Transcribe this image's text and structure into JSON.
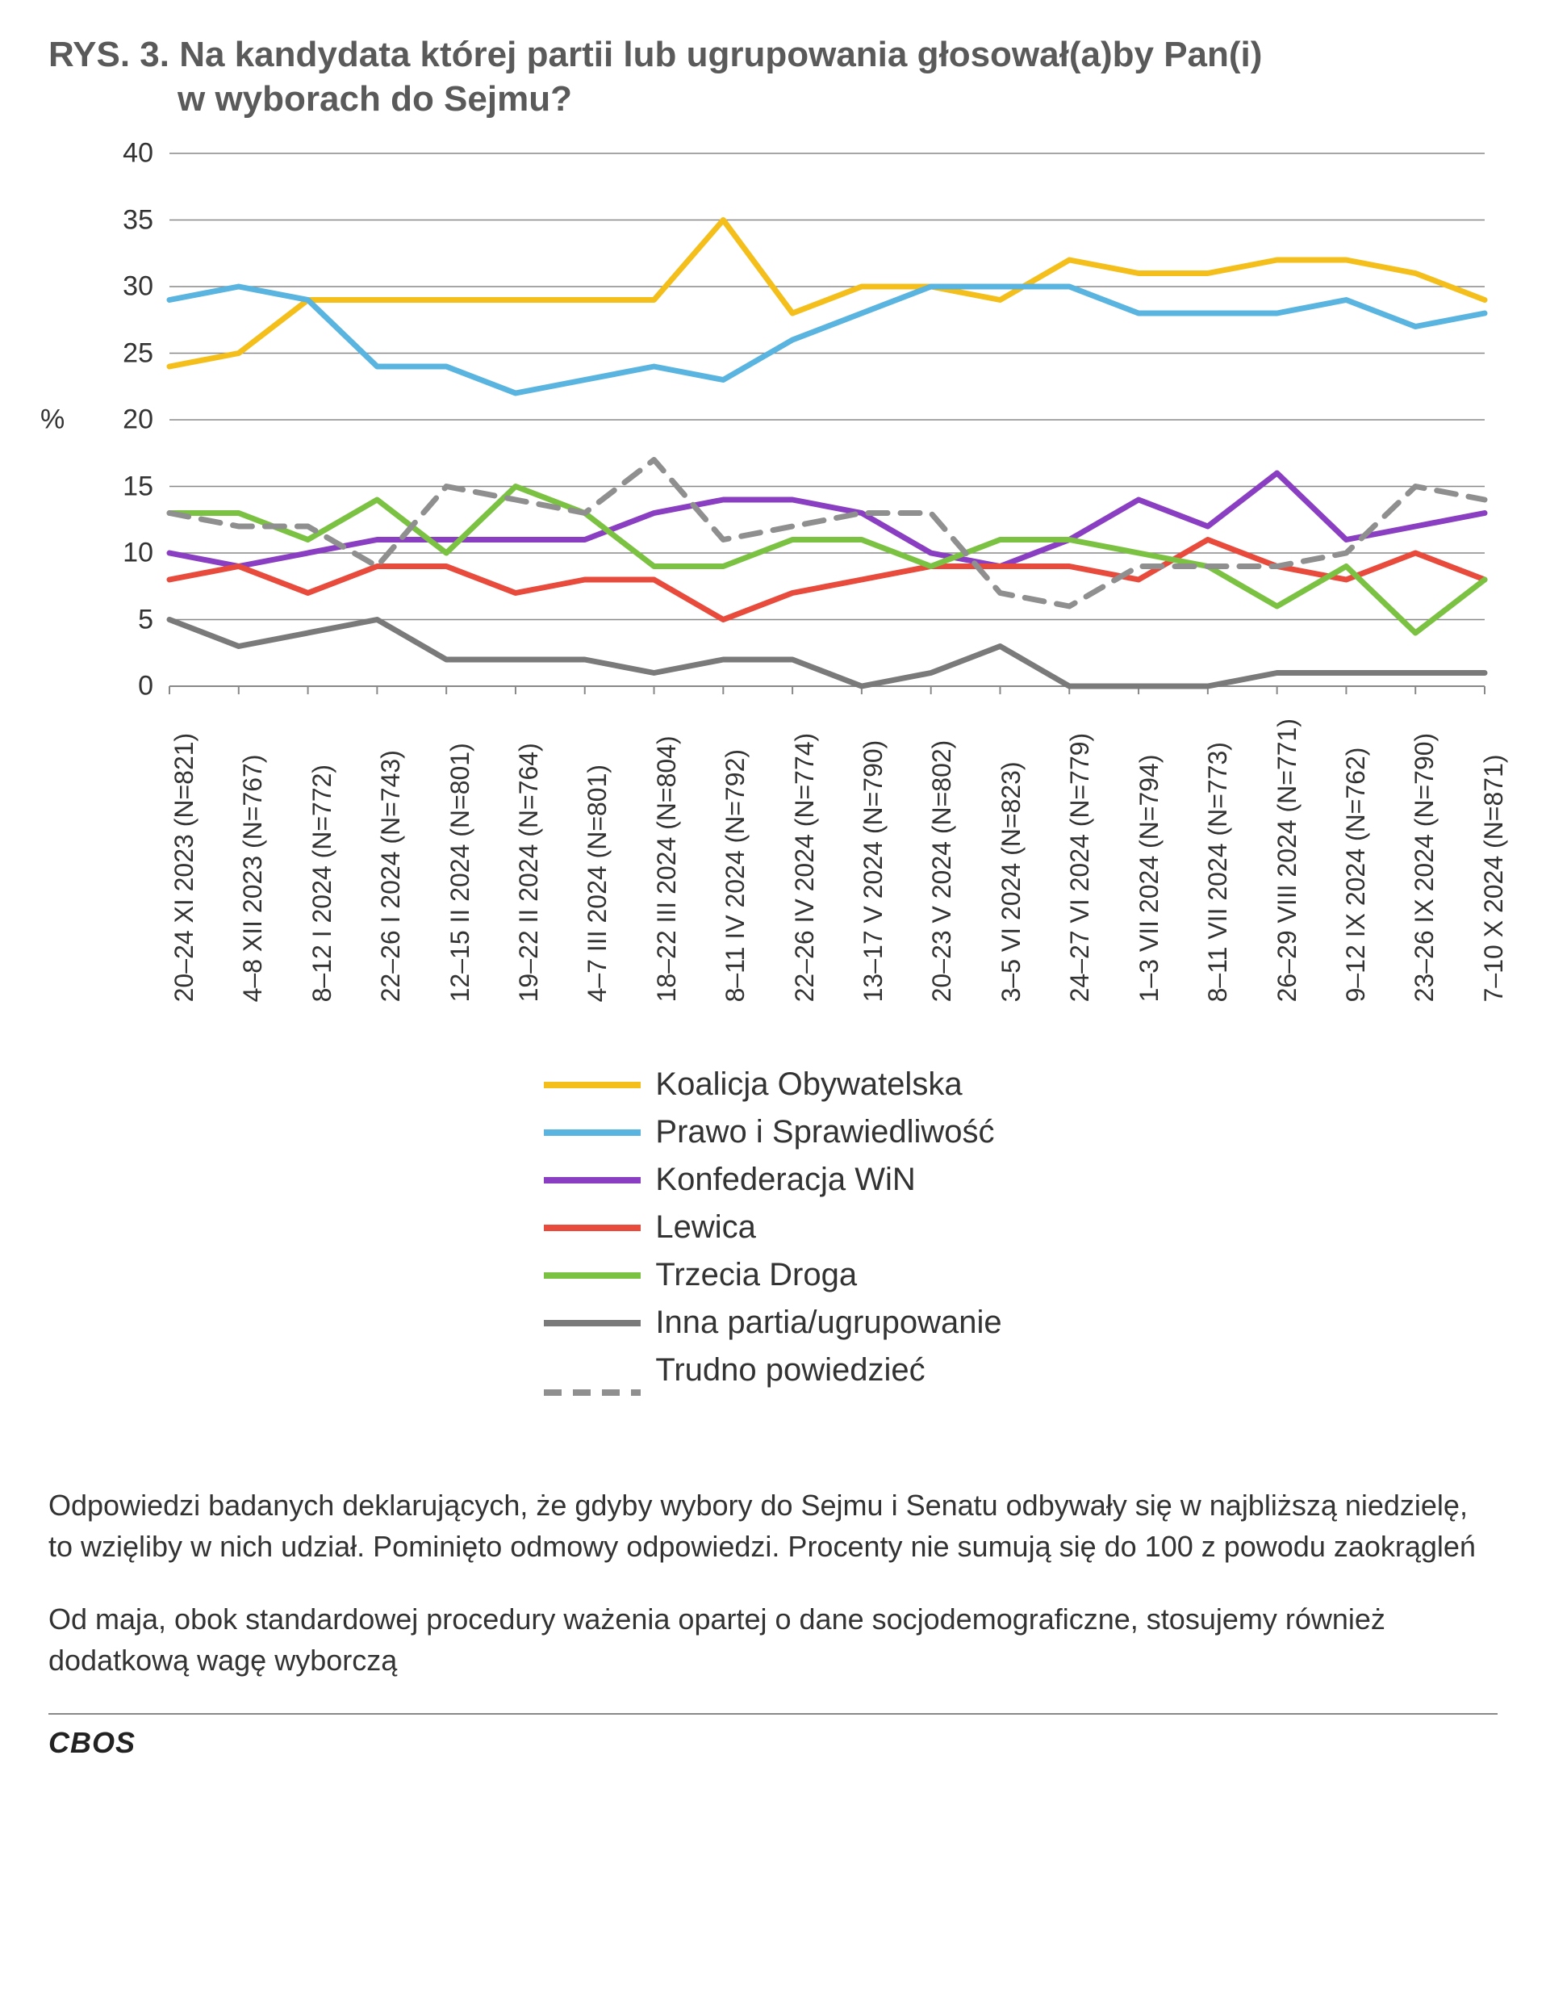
{
  "title_prefix": "RYS. 3. ",
  "title_line1": "Na kandydata której partii lub ugrupowania głosował(a)by Pan(i)",
  "title_line2": "w wyborach do Sejmu?",
  "y_axis_label": "%",
  "chart": {
    "type": "line",
    "ylim": [
      0,
      40
    ],
    "ytick_step": 5,
    "yticks": [
      0,
      5,
      10,
      15,
      20,
      25,
      30,
      35,
      40
    ],
    "background_color": "#ffffff",
    "grid_color": "#888888",
    "line_width": 7,
    "label_fontsize": 34,
    "categories": [
      "20–24 XI 2023 (N=821)",
      "4–8 XII 2023 (N=767)",
      "8–12 I 2024 (N=772)",
      "22–26 I 2024 (N=743)",
      "12–15 II 2024 (N=801)",
      "19–22 II 2024 (N=764)",
      "4–7 III 2024 (N=801)",
      "18–22 III 2024 (N=804)",
      "8–11 IV 2024 (N=792)",
      "22–26 IV 2024 (N=774)",
      "13–17 V 2024 (N=790)",
      "20–23 V 2024 (N=802)",
      "3–5 VI 2024 (N=823)",
      "24–27 VI 2024 (N=779)",
      "1–3 VII 2024 (N=794)",
      "8–11 VII 2024 (N=773)",
      "26–29 VIII 2024 (N=771)",
      "9–12 IX 2024 (N=762)",
      "23–26 IX 2024 (N=790)",
      "7–10 X 2024 (N=871)"
    ],
    "series": [
      {
        "name": "Koalicja Obywatelska",
        "color": "#f4bf1a",
        "dash": "solid",
        "values": [
          24,
          25,
          29,
          29,
          29,
          29,
          29,
          29,
          35,
          28,
          30,
          30,
          29,
          32,
          31,
          31,
          32,
          32,
          31,
          29
        ]
      },
      {
        "name": "Prawo i Sprawiedliwość",
        "color": "#5ab4e0",
        "dash": "solid",
        "values": [
          29,
          30,
          29,
          24,
          24,
          22,
          23,
          24,
          23,
          26,
          28,
          30,
          30,
          30,
          28,
          28,
          28,
          29,
          27,
          28
        ]
      },
      {
        "name": "Konfederacja WiN",
        "color": "#8a3fc2",
        "dash": "solid",
        "values": [
          10,
          9,
          10,
          11,
          11,
          11,
          11,
          13,
          14,
          14,
          13,
          10,
          9,
          11,
          14,
          12,
          16,
          11,
          12,
          13
        ]
      },
      {
        "name": "Lewica",
        "color": "#e84a3c",
        "dash": "solid",
        "values": [
          8,
          9,
          7,
          9,
          9,
          7,
          8,
          8,
          5,
          7,
          8,
          9,
          9,
          9,
          8,
          11,
          9,
          8,
          10,
          8
        ]
      },
      {
        "name": "Trzecia Droga",
        "color": "#7bc242",
        "dash": "solid",
        "values": [
          13,
          13,
          11,
          14,
          10,
          15,
          13,
          9,
          9,
          11,
          11,
          9,
          11,
          11,
          10,
          9,
          6,
          9,
          4,
          8
        ]
      },
      {
        "name": "Inna partia/ugrupowanie",
        "color": "#7a7a7a",
        "dash": "solid",
        "values": [
          5,
          3,
          4,
          5,
          2,
          2,
          2,
          1,
          2,
          2,
          0,
          1,
          3,
          0,
          0,
          0,
          1,
          1,
          1,
          1
        ]
      },
      {
        "name": "Trudno powiedzieć",
        "color": "#8f8f8f",
        "dash": "dashed",
        "values": [
          13,
          12,
          12,
          9,
          15,
          14,
          13,
          17,
          11,
          12,
          13,
          13,
          7,
          6,
          9,
          9,
          9,
          10,
          15,
          14
        ]
      }
    ]
  },
  "footnote1": "Odpowiedzi badanych deklarujących, że gdyby wybory do Sejmu i Senatu odbywały się w najbliższą niedzielę, to wzięliby w nich udział. Pominięto odmowy odpowiedzi. Procenty nie sumują się do 100 z powodu zaokrągleń",
  "footnote2": "Od maja, obok standardowej procedury ważenia opartej o dane socjodemograficzne, stosujemy również dodatkową wagę wyborczą",
  "source_label": "CBOS"
}
